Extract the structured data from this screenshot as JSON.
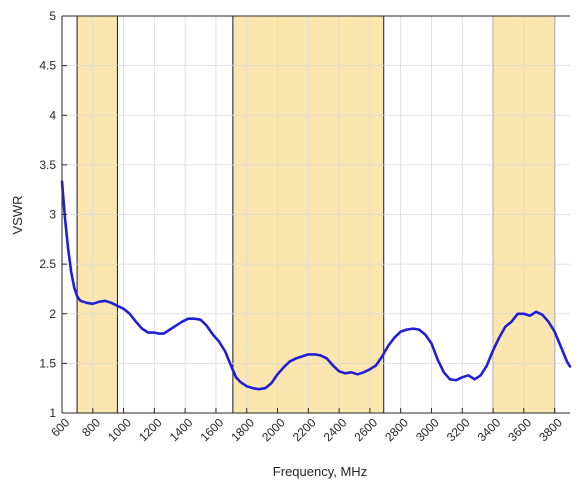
{
  "chart_data": {
    "type": "line",
    "xlabel": "Frequency, MHz",
    "ylabel": "VSWR",
    "xlim": [
      600,
      3900
    ],
    "ylim": [
      1,
      5
    ],
    "grid": true,
    "x_ticks": [
      600,
      800,
      1000,
      1200,
      1400,
      1600,
      1800,
      2000,
      2200,
      2400,
      2600,
      2800,
      3000,
      3200,
      3400,
      3600,
      3800
    ],
    "x_tick_labels": [
      "600",
      "800",
      "1000",
      "1200",
      "1400",
      "1600",
      "1800",
      "2000",
      "2200",
      "2400",
      "2600",
      "2800",
      "3000",
      "3200",
      "3400",
      "3600",
      "3800"
    ],
    "y_ticks": [
      1,
      1.5,
      2,
      2.5,
      3,
      3.5,
      4,
      4.5,
      5
    ],
    "y_tick_labels": [
      "1",
      "1.5",
      "2",
      "2.5",
      "3",
      "3.5",
      "4",
      "4.5",
      "5"
    ],
    "bands": [
      {
        "x_start": 698,
        "x_end": 960
      },
      {
        "x_start": 1710,
        "x_end": 2690
      },
      {
        "x_start": 3400,
        "x_end": 3800
      }
    ],
    "band_color": "#fce6b0",
    "series": [
      {
        "color": "#1f1fd6",
        "x": [
          600,
          620,
          640,
          660,
          680,
          700,
          720,
          760,
          800,
          840,
          880,
          920,
          960,
          1000,
          1040,
          1080,
          1120,
          1160,
          1200,
          1230,
          1260,
          1300,
          1340,
          1380,
          1420,
          1460,
          1500,
          1540,
          1580,
          1620,
          1660,
          1700,
          1730,
          1760,
          1800,
          1840,
          1880,
          1920,
          1960,
          2000,
          2040,
          2080,
          2120,
          2160,
          2200,
          2240,
          2280,
          2320,
          2360,
          2400,
          2440,
          2480,
          2520,
          2560,
          2600,
          2640,
          2680,
          2720,
          2760,
          2800,
          2840,
          2880,
          2920,
          2960,
          3000,
          3040,
          3080,
          3120,
          3160,
          3200,
          3240,
          3280,
          3320,
          3360,
          3400,
          3440,
          3480,
          3520,
          3560,
          3600,
          3640,
          3680,
          3720,
          3760,
          3800,
          3840,
          3880,
          3900
        ],
        "y": [
          3.33,
          2.95,
          2.65,
          2.42,
          2.26,
          2.17,
          2.13,
          2.11,
          2.1,
          2.12,
          2.13,
          2.11,
          2.08,
          2.05,
          2.0,
          1.92,
          1.85,
          1.81,
          1.81,
          1.8,
          1.8,
          1.84,
          1.88,
          1.92,
          1.95,
          1.95,
          1.94,
          1.88,
          1.79,
          1.72,
          1.62,
          1.47,
          1.36,
          1.31,
          1.27,
          1.25,
          1.24,
          1.25,
          1.3,
          1.39,
          1.46,
          1.52,
          1.55,
          1.57,
          1.59,
          1.59,
          1.58,
          1.55,
          1.48,
          1.42,
          1.4,
          1.41,
          1.39,
          1.41,
          1.44,
          1.48,
          1.57,
          1.68,
          1.76,
          1.82,
          1.84,
          1.85,
          1.84,
          1.79,
          1.7,
          1.54,
          1.41,
          1.34,
          1.33,
          1.36,
          1.38,
          1.34,
          1.38,
          1.48,
          1.63,
          1.76,
          1.87,
          1.92,
          2.0,
          2.0,
          1.98,
          2.02,
          1.99,
          1.92,
          1.82,
          1.67,
          1.52,
          1.47
        ]
      }
    ]
  }
}
